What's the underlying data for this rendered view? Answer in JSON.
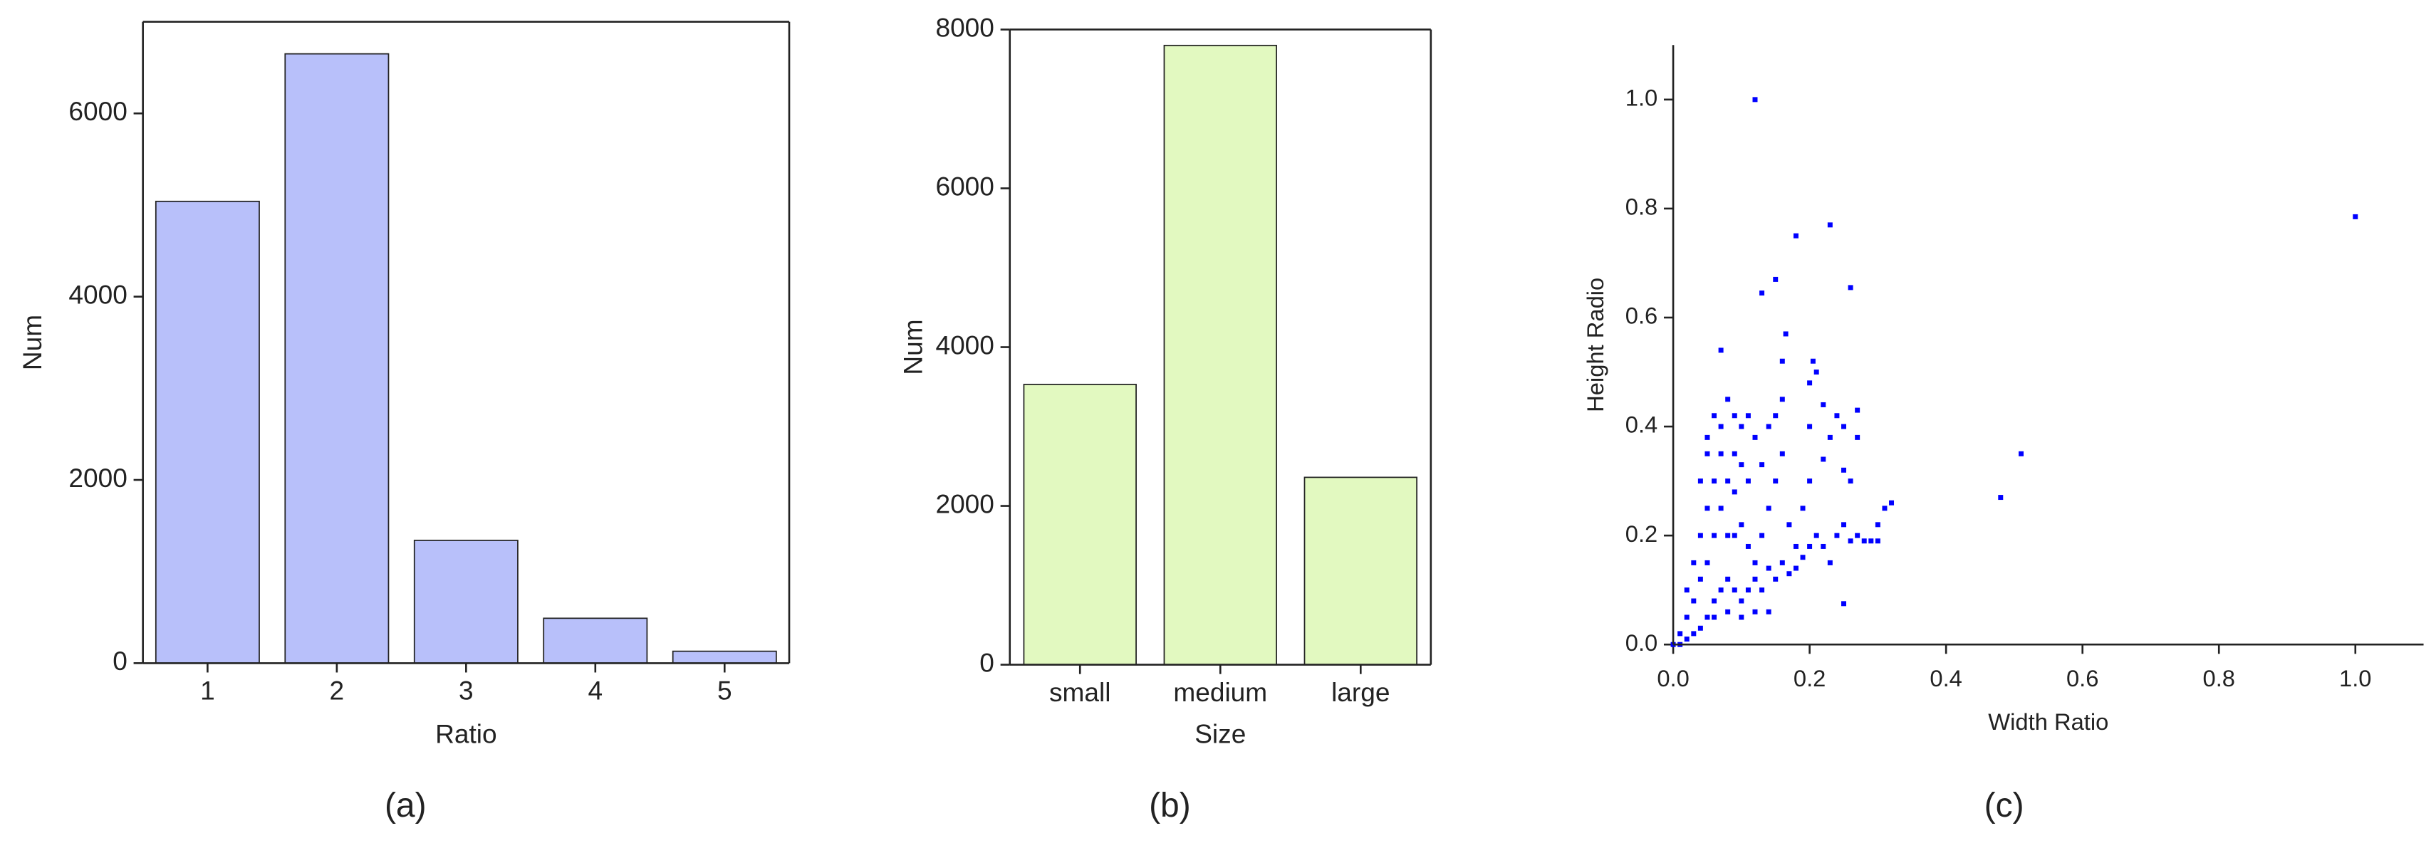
{
  "chart_data": [
    {
      "type": "bar",
      "caption": "(a)",
      "xlabel": "Ratio",
      "ylabel": "Num",
      "categories": [
        "1",
        "2",
        "3",
        "4",
        "5"
      ],
      "values": [
        5040,
        6650,
        1340,
        490,
        130
      ],
      "color": "#b8c0fa",
      "ylim": [
        0,
        7000
      ],
      "yticks": [
        0,
        2000,
        4000,
        6000
      ]
    },
    {
      "type": "bar",
      "caption": "(b)",
      "xlabel": "Size",
      "ylabel": "Num",
      "categories": [
        "small",
        "medium",
        "large"
      ],
      "values": [
        3530,
        7800,
        2360
      ],
      "color": "#e2f9c0",
      "ylim": [
        0,
        8000
      ],
      "yticks": [
        0,
        2000,
        4000,
        6000,
        8000
      ]
    },
    {
      "type": "scatter",
      "caption": "(c)",
      "xlabel": "Width Ratio",
      "ylabel": "Height Radio",
      "color": "#0000ff",
      "xlim": [
        0,
        1.1
      ],
      "ylim": [
        0,
        1.1
      ],
      "xticks": [
        {
          "value": 0,
          "label": "0.0"
        },
        0.2,
        0.4,
        0.6,
        0.8,
        {
          "value": 1,
          "label": "1.0"
        }
      ],
      "yticks": [
        {
          "value": 0,
          "label": "0.0"
        },
        0.2,
        0.4,
        0.6,
        0.8,
        {
          "value": 1,
          "label": "1.0"
        }
      ],
      "x": [
        0.01,
        0.02,
        0.03,
        0.04,
        0.05,
        0.06,
        0.07,
        0.08,
        0.09,
        0.07,
        0.05,
        0.06,
        0.08,
        0.1,
        0.11,
        0.12,
        0.09,
        0.1,
        0.11,
        0.12,
        0.13,
        0.14,
        0.15,
        0.16,
        0.16,
        0.16,
        0.165,
        0.17,
        0.18,
        0.19,
        0.2,
        0.2,
        0.2,
        0.205,
        0.21,
        0.22,
        0.23,
        0.24,
        0.25,
        0.26,
        0.21,
        0.22,
        0.23,
        0.24,
        0.25,
        0.26,
        0.27,
        0.28,
        0.29,
        0.3,
        0.31,
        0.32,
        0.3,
        0.27,
        0.27,
        0.25,
        0.22,
        0.03,
        0.04,
        0.05,
        0.06,
        0.07,
        0.08,
        0.09,
        0.1,
        0.11,
        0.12,
        0.13,
        0.14,
        0.15,
        0.16,
        0.17,
        0.18,
        0.19,
        0.2,
        0.02,
        0.03,
        0.04,
        0.05,
        0.06,
        0.07,
        0.04,
        0.05,
        0.06,
        0.08,
        0.1,
        0.12,
        0.14,
        0.09,
        0.11,
        0.12,
        0.23,
        0.18,
        0.15,
        0.26,
        0.13,
        1.0,
        0.51,
        0.48,
        0.25,
        0.07,
        0.01,
        0.02,
        0,
        0.13,
        0.14,
        0.1,
        0.08,
        0.09,
        0.15
      ],
      "values": [
        0.02,
        0.05,
        0.08,
        0.12,
        0.15,
        0.2,
        0.25,
        0.3,
        0.35,
        0.4,
        0.38,
        0.42,
        0.45,
        0.4,
        0.42,
        0.38,
        0.28,
        0.22,
        0.18,
        0.15,
        0.2,
        0.25,
        0.3,
        0.35,
        0.45,
        0.52,
        0.57,
        0.22,
        0.18,
        0.25,
        0.3,
        0.4,
        0.48,
        0.52,
        0.5,
        0.44,
        0.38,
        0.42,
        0.32,
        0.3,
        0.2,
        0.18,
        0.15,
        0.2,
        0.22,
        0.19,
        0.2,
        0.19,
        0.19,
        0.19,
        0.25,
        0.26,
        0.22,
        0.38,
        0.43,
        0.4,
        0.34,
        0.02,
        0.03,
        0.05,
        0.08,
        0.1,
        0.12,
        0.1,
        0.08,
        0.1,
        0.12,
        0.1,
        0.14,
        0.12,
        0.15,
        0.13,
        0.14,
        0.16,
        0.18,
        0.1,
        0.15,
        0.2,
        0.25,
        0.3,
        0.35,
        0.3,
        0.35,
        0.05,
        0.06,
        0.05,
        0.06,
        0.06,
        0.2,
        0.3,
        1.0,
        0.77,
        0.75,
        0.67,
        0.655,
        0.645,
        0.785,
        0.35,
        0.27,
        0.075,
        0.54,
        0,
        0.01,
        0,
        0.33,
        0.4,
        0.33,
        0.2,
        0.42,
        0.42
      ]
    }
  ]
}
